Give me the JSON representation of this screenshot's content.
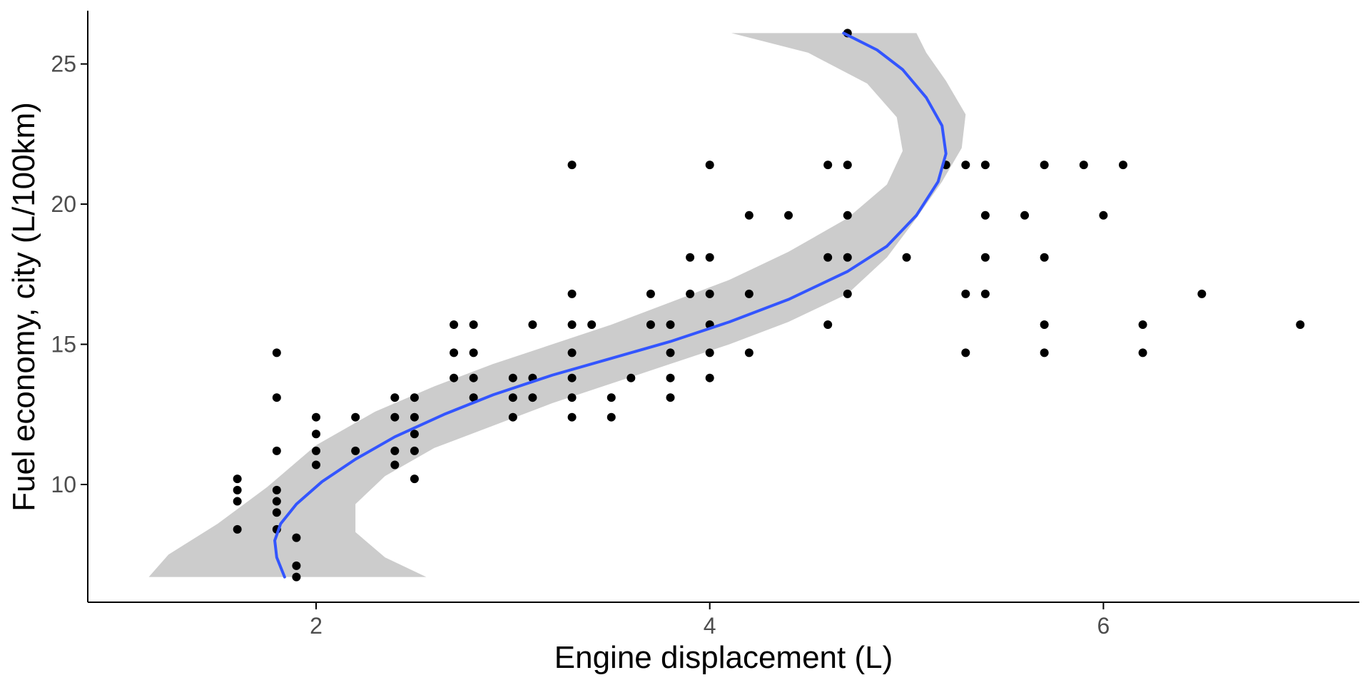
{
  "colors": {
    "background": "#ffffff",
    "point": "#000000",
    "smooth_line": "#3355ff",
    "confidence_band": "#cccccc",
    "axis_line": "#000000",
    "tick_label": "#4d4d4d"
  },
  "chart_data": {
    "type": "scatter",
    "xlabel": "Engine displacement (L)",
    "ylabel": "Fuel economy, city (L/100km)",
    "xlim": [
      0.84,
      7.3
    ],
    "ylim": [
      5.8,
      26.9
    ],
    "x_ticks": [
      2,
      4,
      6
    ],
    "x_tick_labels": [
      "2",
      "4",
      "6"
    ],
    "y_ticks": [
      10,
      15,
      20,
      25
    ],
    "y_tick_labels": [
      "10",
      "15",
      "20",
      "25"
    ],
    "grid": false,
    "legend": "none",
    "series": [
      {
        "kind": "points",
        "points": [
          [
            1.6,
            10.2
          ],
          [
            1.6,
            9.8
          ],
          [
            1.6,
            9.4
          ],
          [
            1.6,
            8.4
          ],
          [
            1.8,
            14.7
          ],
          [
            1.8,
            13.1
          ],
          [
            1.8,
            11.2
          ],
          [
            1.8,
            9.8
          ],
          [
            1.8,
            9.4
          ],
          [
            1.8,
            9.0
          ],
          [
            1.8,
            8.4
          ],
          [
            1.9,
            8.1
          ],
          [
            1.9,
            7.1
          ],
          [
            1.9,
            6.7
          ],
          [
            2.0,
            12.4
          ],
          [
            2.0,
            11.8
          ],
          [
            2.0,
            11.2
          ],
          [
            2.0,
            10.7
          ],
          [
            2.2,
            12.4
          ],
          [
            2.2,
            11.2
          ],
          [
            2.4,
            13.1
          ],
          [
            2.4,
            12.4
          ],
          [
            2.4,
            11.2
          ],
          [
            2.4,
            10.7
          ],
          [
            2.5,
            13.1
          ],
          [
            2.5,
            12.4
          ],
          [
            2.5,
            11.8
          ],
          [
            2.5,
            11.2
          ],
          [
            2.5,
            10.2
          ],
          [
            2.7,
            15.7
          ],
          [
            2.7,
            14.7
          ],
          [
            2.7,
            13.8
          ],
          [
            2.8,
            15.7
          ],
          [
            2.8,
            14.7
          ],
          [
            2.8,
            13.8
          ],
          [
            2.8,
            13.1
          ],
          [
            3.0,
            13.8
          ],
          [
            3.0,
            13.1
          ],
          [
            3.0,
            12.4
          ],
          [
            3.1,
            15.7
          ],
          [
            3.1,
            13.8
          ],
          [
            3.1,
            13.1
          ],
          [
            3.3,
            21.4
          ],
          [
            3.3,
            16.8
          ],
          [
            3.3,
            15.7
          ],
          [
            3.3,
            14.7
          ],
          [
            3.3,
            13.8
          ],
          [
            3.3,
            13.1
          ],
          [
            3.3,
            12.4
          ],
          [
            3.4,
            15.7
          ],
          [
            3.5,
            13.1
          ],
          [
            3.5,
            12.4
          ],
          [
            3.6,
            13.8
          ],
          [
            3.7,
            16.8
          ],
          [
            3.7,
            15.7
          ],
          [
            3.8,
            15.7
          ],
          [
            3.8,
            14.7
          ],
          [
            3.8,
            13.8
          ],
          [
            3.8,
            13.1
          ],
          [
            3.9,
            18.1
          ],
          [
            3.9,
            16.8
          ],
          [
            4.0,
            21.4
          ],
          [
            4.0,
            18.1
          ],
          [
            4.0,
            16.8
          ],
          [
            4.0,
            15.7
          ],
          [
            4.0,
            14.7
          ],
          [
            4.0,
            13.8
          ],
          [
            4.2,
            19.6
          ],
          [
            4.2,
            16.8
          ],
          [
            4.2,
            14.7
          ],
          [
            4.4,
            19.6
          ],
          [
            4.6,
            21.4
          ],
          [
            4.6,
            18.1
          ],
          [
            4.6,
            15.7
          ],
          [
            4.7,
            26.1
          ],
          [
            4.7,
            21.4
          ],
          [
            4.7,
            19.6
          ],
          [
            4.7,
            18.1
          ],
          [
            4.7,
            16.8
          ],
          [
            5.0,
            18.1
          ],
          [
            5.2,
            21.4
          ],
          [
            5.3,
            21.4
          ],
          [
            5.3,
            16.8
          ],
          [
            5.3,
            14.7
          ],
          [
            5.4,
            21.4
          ],
          [
            5.4,
            19.6
          ],
          [
            5.4,
            18.1
          ],
          [
            5.4,
            16.8
          ],
          [
            5.6,
            19.6
          ],
          [
            5.7,
            21.4
          ],
          [
            5.7,
            18.1
          ],
          [
            5.7,
            15.7
          ],
          [
            5.7,
            14.7
          ],
          [
            5.9,
            21.4
          ],
          [
            6.0,
            19.6
          ],
          [
            6.1,
            21.4
          ],
          [
            6.2,
            15.7
          ],
          [
            6.2,
            14.7
          ],
          [
            6.5,
            16.8
          ],
          [
            7.0,
            15.7
          ]
        ]
      },
      {
        "kind": "smooth",
        "points": [
          [
            1.84,
            6.7
          ],
          [
            1.8,
            7.4
          ],
          [
            1.79,
            8.0
          ],
          [
            1.82,
            8.6
          ],
          [
            1.9,
            9.3
          ],
          [
            2.03,
            10.1
          ],
          [
            2.2,
            10.9
          ],
          [
            2.4,
            11.7
          ],
          [
            2.65,
            12.5
          ],
          [
            2.9,
            13.2
          ],
          [
            3.2,
            13.9
          ],
          [
            3.5,
            14.5
          ],
          [
            3.8,
            15.1
          ],
          [
            4.1,
            15.8
          ],
          [
            4.4,
            16.6
          ],
          [
            4.7,
            17.6
          ],
          [
            4.9,
            18.5
          ],
          [
            5.05,
            19.6
          ],
          [
            5.16,
            20.8
          ],
          [
            5.2,
            21.8
          ],
          [
            5.18,
            22.8
          ],
          [
            5.1,
            23.8
          ],
          [
            4.98,
            24.8
          ],
          [
            4.85,
            25.5
          ],
          [
            4.68,
            26.1
          ]
        ]
      },
      {
        "kind": "band",
        "points": [
          [
            2.56,
            6.7
          ],
          [
            2.35,
            7.4
          ],
          [
            2.2,
            8.3
          ],
          [
            2.2,
            9.3
          ],
          [
            2.35,
            10.3
          ],
          [
            2.6,
            11.3
          ],
          [
            2.9,
            12.1
          ],
          [
            3.2,
            12.9
          ],
          [
            3.5,
            13.6
          ],
          [
            3.8,
            14.3
          ],
          [
            4.1,
            15.0
          ],
          [
            4.4,
            15.8
          ],
          [
            4.7,
            16.8
          ],
          [
            4.9,
            18.1
          ],
          [
            5.05,
            19.5
          ],
          [
            5.18,
            20.8
          ],
          [
            5.28,
            22.0
          ],
          [
            5.3,
            23.2
          ],
          [
            5.2,
            24.4
          ],
          [
            5.1,
            25.4
          ],
          [
            5.05,
            26.1
          ],
          [
            4.11,
            26.1
          ],
          [
            4.5,
            25.4
          ],
          [
            4.8,
            24.3
          ],
          [
            4.95,
            23.1
          ],
          [
            4.98,
            21.9
          ],
          [
            4.9,
            20.7
          ],
          [
            4.7,
            19.5
          ],
          [
            4.4,
            18.3
          ],
          [
            4.1,
            17.3
          ],
          [
            3.8,
            16.5
          ],
          [
            3.5,
            15.7
          ],
          [
            3.2,
            15.0
          ],
          [
            2.9,
            14.3
          ],
          [
            2.6,
            13.5
          ],
          [
            2.3,
            12.6
          ],
          [
            2.0,
            11.4
          ],
          [
            1.75,
            9.9
          ],
          [
            1.5,
            8.6
          ],
          [
            1.25,
            7.5
          ],
          [
            1.15,
            6.7
          ]
        ]
      }
    ]
  }
}
